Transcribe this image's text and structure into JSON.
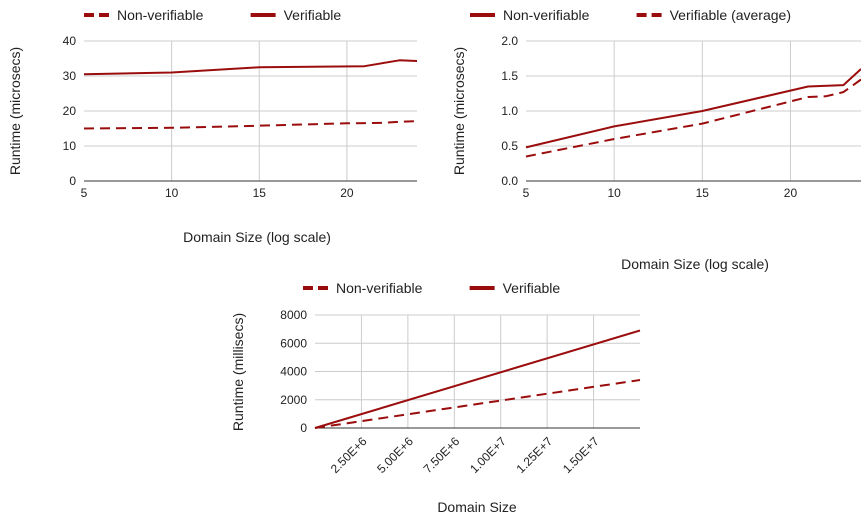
{
  "colors": {
    "series": "#9b0d0d",
    "grid": "#cccccc",
    "axis": "#333333"
  },
  "chart_data": [
    {
      "type": "line",
      "legend": [
        "Non-verifiable",
        "Verifiable"
      ],
      "xlabel": "Domain Size (log scale)",
      "ylabel": "Runtime (microsecs)",
      "xlim": [
        5,
        24
      ],
      "ylim": [
        0,
        40
      ],
      "xticks": [
        "5",
        "10",
        "15",
        "20"
      ],
      "yticks": [
        "0",
        "10",
        "20",
        "30",
        "40"
      ],
      "series": [
        {
          "name": "Non-verifiable",
          "style": "dashed",
          "points": [
            [
              5,
              15
            ],
            [
              10,
              15.2
            ],
            [
              15,
              15.8
            ],
            [
              20,
              16.5
            ],
            [
              22,
              16.6
            ],
            [
              23,
              16.9
            ],
            [
              24,
              17.1
            ]
          ]
        },
        {
          "name": "Verifiable",
          "style": "solid",
          "points": [
            [
              5,
              30.5
            ],
            [
              10,
              31
            ],
            [
              15,
              32.5
            ],
            [
              21,
              32.8
            ],
            [
              23,
              34.5
            ],
            [
              24,
              34.3
            ]
          ]
        }
      ],
      "grid": true,
      "legend_position": "top-left"
    },
    {
      "type": "line",
      "legend": [
        "Non-verifiable",
        "Verifiable (average)"
      ],
      "xlabel": "Domain Size (log scale)",
      "ylabel": "Runtime (microsecs)",
      "xlim": [
        5,
        24
      ],
      "ylim": [
        0,
        2
      ],
      "xticks": [
        "5",
        "10",
        "15",
        "20"
      ],
      "yticks": [
        "0.0",
        "0.5",
        "1.0",
        "1.5",
        "2.0"
      ],
      "series": [
        {
          "name": "Non-verifiable",
          "style": "solid",
          "points": [
            [
              5,
              0.48
            ],
            [
              10,
              0.78
            ],
            [
              15,
              1.0
            ],
            [
              21,
              1.35
            ],
            [
              23,
              1.37
            ],
            [
              24,
              1.6
            ]
          ]
        },
        {
          "name": "Verifiable (average)",
          "style": "dashed",
          "points": [
            [
              5,
              0.35
            ],
            [
              10,
              0.6
            ],
            [
              15,
              0.82
            ],
            [
              21,
              1.2
            ],
            [
              22,
              1.21
            ],
            [
              23,
              1.27
            ],
            [
              24,
              1.45
            ]
          ]
        }
      ],
      "grid": true,
      "legend_position": "top-left"
    },
    {
      "type": "line",
      "legend": [
        "Non-verifiable",
        "Verifiable"
      ],
      "xlabel": "Domain Size",
      "ylabel": "Runtime (millisecs)",
      "xlim": [
        0,
        17500000
      ],
      "ylim": [
        0,
        8000
      ],
      "xticks": [
        "2.50E+6",
        "5.00E+6",
        "7.50E+6",
        "1.00E+7",
        "1.25E+7",
        "1.50E+7"
      ],
      "xtick_values": [
        2500000,
        5000000,
        7500000,
        10000000,
        12500000,
        15000000
      ],
      "yticks": [
        "0",
        "2000",
        "4000",
        "6000",
        "8000"
      ],
      "series": [
        {
          "name": "Non-verifiable",
          "style": "dashed",
          "points": [
            [
              0,
              0
            ],
            [
              17500000,
              3400
            ]
          ]
        },
        {
          "name": "Verifiable",
          "style": "solid",
          "points": [
            [
              0,
              0
            ],
            [
              17500000,
              6900
            ]
          ]
        }
      ],
      "grid": true,
      "legend_position": "top-center"
    }
  ]
}
